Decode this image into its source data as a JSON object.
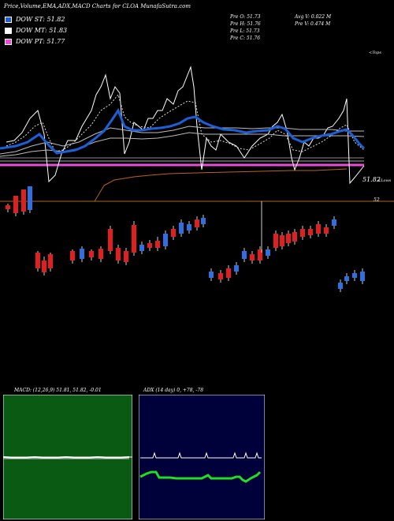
{
  "header": {
    "title": "Price,Volume,EMA,ADX,MACD Charts for CLOA MunafaSutra.com"
  },
  "legend": [
    {
      "label": "DOW ST: 51.82",
      "color": "#1f5fd6"
    },
    {
      "label": "DOW MT: 51.83",
      "color": "#e8e8e8"
    },
    {
      "label": "DOW PT: 51.77",
      "color": "#e84cd8"
    }
  ],
  "stats": {
    "col1": [
      "Pre  O: 51.73",
      "Pre  H: 51.76",
      "Pre  L: 51.73",
      "Pre  C: 51.76"
    ],
    "col2": [
      "Avg V: 0.022  M",
      "Pre  V: 0.474  M"
    ]
  },
  "labels": {
    "tops": "<Tops",
    "lows": "<Lows",
    "price_current": "51.82",
    "price_level": "52"
  },
  "colors": {
    "up": "#2f6fe0",
    "down": "#e02020",
    "ema_blue": "#1f5fd6",
    "ema_pink": "#e84cd8",
    "macd_bg": "#0a5a14",
    "adx_bg": "#00003a",
    "support": "#b5651d"
  },
  "chart_data": [
    {
      "type": "line",
      "title": "Price,Volume,EMA,ADX,MACD Charts for CLOA MunafaSutra.com",
      "series": [
        {
          "name": "DOW ST",
          "last": 51.82
        },
        {
          "name": "DOW MT",
          "last": 51.83
        },
        {
          "name": "DOW PT",
          "last": 51.77
        }
      ],
      "candles_visible": 64,
      "pre": {
        "open": 51.73,
        "high": 51.76,
        "low": 51.73,
        "close": 51.76
      },
      "avg_volume_m": 0.022,
      "pre_volume_m": 0.474
    },
    {
      "type": "line",
      "title": "MACD: (12,26,9) 51.81, 51.82, -0.01",
      "values": {
        "macd": 51.81,
        "signal": 51.82,
        "histogram": -0.01
      }
    },
    {
      "type": "line",
      "title": "ADX (14 day) 0, +78, -78",
      "values": {
        "adx": 0,
        "plus_di": 78,
        "minus_di": -78
      }
    }
  ],
  "panels": {
    "macd_title": "MACD: (12,26,9) 51.81, 51.82, -0.01",
    "adx_title": "ADX (14 day) 0, +78, -78"
  }
}
